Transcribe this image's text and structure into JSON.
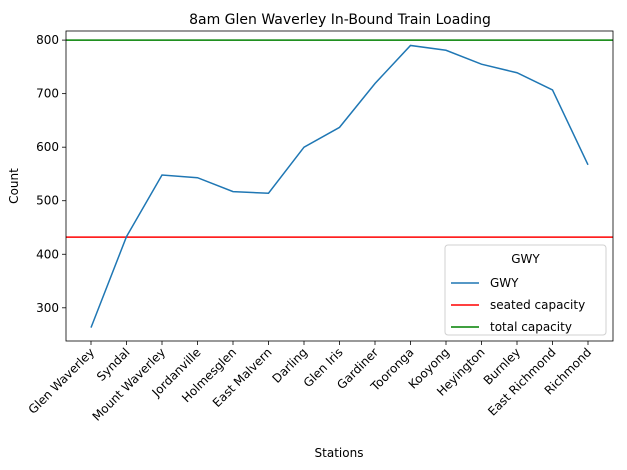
{
  "chart_data": {
    "type": "line",
    "title": "8am Glen Waverley In-Bound Train Loading",
    "xlabel": "Stations",
    "ylabel": "Count",
    "categories": [
      "Glen Waverley",
      "Syndal",
      "Mount Waverley",
      "Jordanville",
      "Holmesglen",
      "East Malvern",
      "Darling",
      "Glen Iris",
      "Gardiner",
      "Tooronga",
      "Kooyong",
      "Heyington",
      "Burnley",
      "East Richmond",
      "Richmond"
    ],
    "series": [
      {
        "name": "GWY",
        "color": "#1f77b4",
        "values": [
          263,
          433,
          548,
          543,
          517,
          514,
          600,
          637,
          719,
          790,
          781,
          755,
          739,
          707,
          567
        ]
      }
    ],
    "reference_lines": [
      {
        "name": "seated capacity",
        "value": 432,
        "color": "#ff0000"
      },
      {
        "name": "total capacity",
        "value": 800,
        "color": "#008000"
      }
    ],
    "yticks": [
      300,
      400,
      500,
      600,
      700,
      800
    ],
    "ylim": [
      238,
      817
    ],
    "grid": false,
    "legend": {
      "title": "GWY",
      "placement": "lower-right"
    }
  }
}
